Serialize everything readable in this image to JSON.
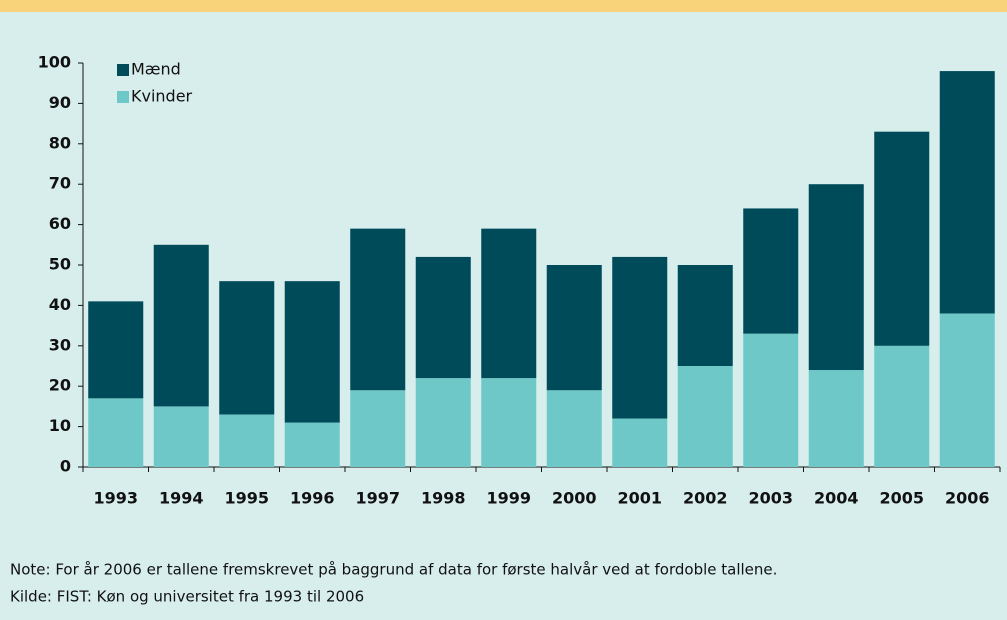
{
  "chart_data": {
    "type": "stacked_bar",
    "categories": [
      "1993",
      "1994",
      "1995",
      "1996",
      "1997",
      "1998",
      "1999",
      "2000",
      "2001",
      "2002",
      "2003",
      "2004",
      "2005",
      "2006"
    ],
    "series": [
      {
        "name": "Mænd",
        "color": "#004b5a",
        "values": [
          24,
          40,
          33,
          35,
          40,
          30,
          37,
          31,
          40,
          25,
          31,
          46,
          53,
          60
        ]
      },
      {
        "name": "Kvinder",
        "color": "#6ec8c7",
        "values": [
          17,
          15,
          13,
          11,
          19,
          22,
          22,
          19,
          12,
          25,
          33,
          24,
          30,
          38
        ]
      }
    ],
    "ylim": [
      0,
      100
    ],
    "yticks": [
      0,
      10,
      20,
      30,
      40,
      50,
      60,
      70,
      80,
      90,
      100
    ],
    "legend": "top-left",
    "note": "Note: For år 2006 er tallene fremskrevet på baggrund af data for første halvår ved at fordoble tallene.",
    "source": "Kilde: FIST: Køn og universitet fra 1993 til 2006"
  }
}
